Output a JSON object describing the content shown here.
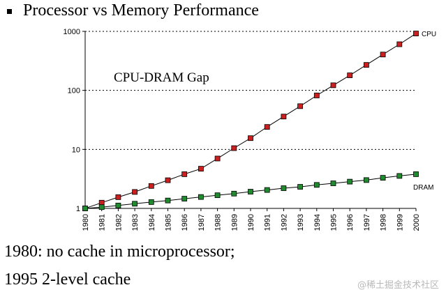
{
  "slide": {
    "title": "Processor vs Memory Performance",
    "note_line1": "1980: no cache in microprocessor;",
    "note_line2": "1995 2-level cache",
    "watermark": "@稀土掘金技术社区"
  },
  "colors": {
    "cpu": "#cc1f1f",
    "dram": "#1f8a2e",
    "line": "#000000",
    "grid": "#000000"
  },
  "chart_data": {
    "type": "line",
    "title": "",
    "xlabel": "",
    "ylabel": "",
    "yscale": "log",
    "ylim": [
      1,
      1000
    ],
    "ytick_labels": [
      "1",
      "10",
      "100",
      "1000"
    ],
    "grid": "horizontal dotted",
    "annotation": "CPU-DRAM Gap",
    "x": [
      "1980",
      "1981",
      "1982",
      "1983",
      "1984",
      "1985",
      "1986",
      "1987",
      "1988",
      "1989",
      "1990",
      "1991",
      "1992",
      "1993",
      "1994",
      "1995",
      "1996",
      "1997",
      "1998",
      "1999",
      "2000"
    ],
    "series": [
      {
        "name": "CPU",
        "values": [
          1,
          1.25,
          1.55,
          1.9,
          2.4,
          3.0,
          3.8,
          4.7,
          7.0,
          10.5,
          15.5,
          24,
          36,
          54,
          82,
          122,
          180,
          270,
          405,
          605,
          920
        ]
      },
      {
        "name": "DRAM",
        "values": [
          1,
          1.05,
          1.12,
          1.2,
          1.28,
          1.36,
          1.46,
          1.56,
          1.67,
          1.78,
          1.92,
          2.05,
          2.2,
          2.32,
          2.5,
          2.66,
          2.84,
          3.02,
          3.3,
          3.55,
          3.8
        ]
      }
    ]
  }
}
